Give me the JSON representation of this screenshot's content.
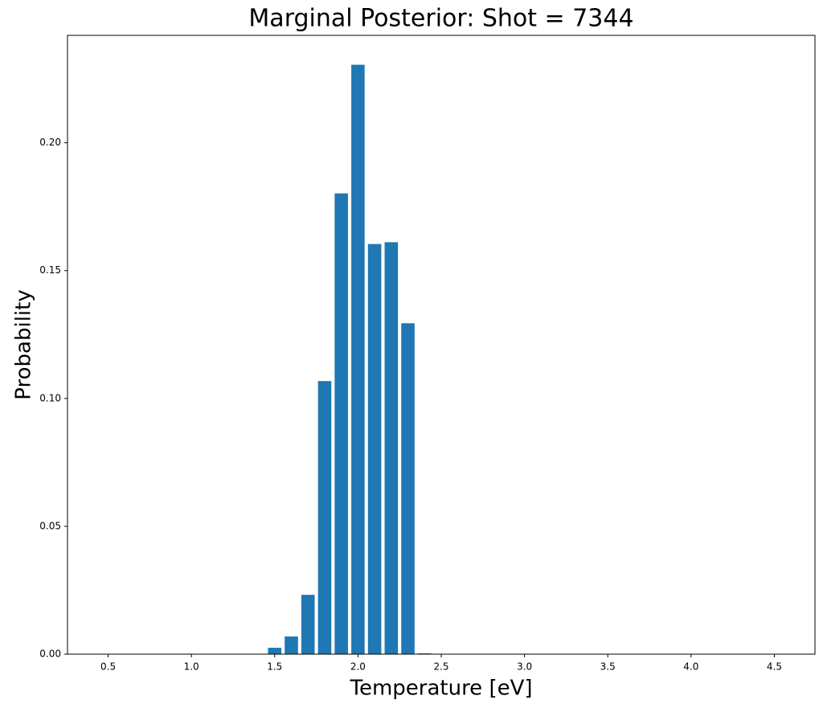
{
  "chart_data": {
    "type": "bar",
    "title": "Marginal Posterior: Shot = 7344",
    "x_label": "Temperature [eV]",
    "y_label": "Probability",
    "x": [
      0.5,
      0.6,
      0.7,
      0.8,
      0.9,
      1.0,
      1.1,
      1.2,
      1.3,
      1.4,
      1.5,
      1.6,
      1.7,
      1.8,
      1.9,
      2.0,
      2.1,
      2.2,
      2.3,
      2.4,
      2.5,
      2.6,
      2.7,
      2.8,
      2.9,
      3.0,
      3.1,
      3.2,
      3.3,
      3.4,
      3.5,
      3.6,
      3.7,
      3.8,
      3.9,
      4.0,
      4.1,
      4.2,
      4.3,
      4.4,
      4.5
    ],
    "values": [
      0,
      0,
      0,
      0,
      0,
      0,
      0,
      0,
      0,
      0,
      0.0025,
      0.0069,
      0.0232,
      0.1068,
      0.1802,
      0.2305,
      0.1604,
      0.1611,
      0.1294,
      0.0003,
      0,
      0,
      0,
      0,
      0,
      0,
      0,
      0,
      0,
      0,
      0,
      0,
      0,
      0,
      0,
      0,
      0,
      0,
      0,
      0,
      0
    ],
    "color": "#1f77b4",
    "xlim": [
      0.256,
      4.744
    ],
    "ylim": [
      0,
      0.242
    ],
    "xticks": [
      0.5,
      {
        "value": 1.0,
        "label": "1.0"
      },
      1.5,
      {
        "value": 2.0,
        "label": "2.0"
      },
      2.5,
      {
        "value": 3.0,
        "label": "3.0"
      },
      3.5,
      {
        "value": 4.0,
        "label": "4.0"
      },
      4.5
    ],
    "yticks": [
      {
        "value": 0,
        "label": "0.00"
      },
      0.05,
      {
        "value": 0.1,
        "label": "0.10"
      },
      0.15,
      {
        "value": 0.2,
        "label": "0.20"
      }
    ]
  }
}
